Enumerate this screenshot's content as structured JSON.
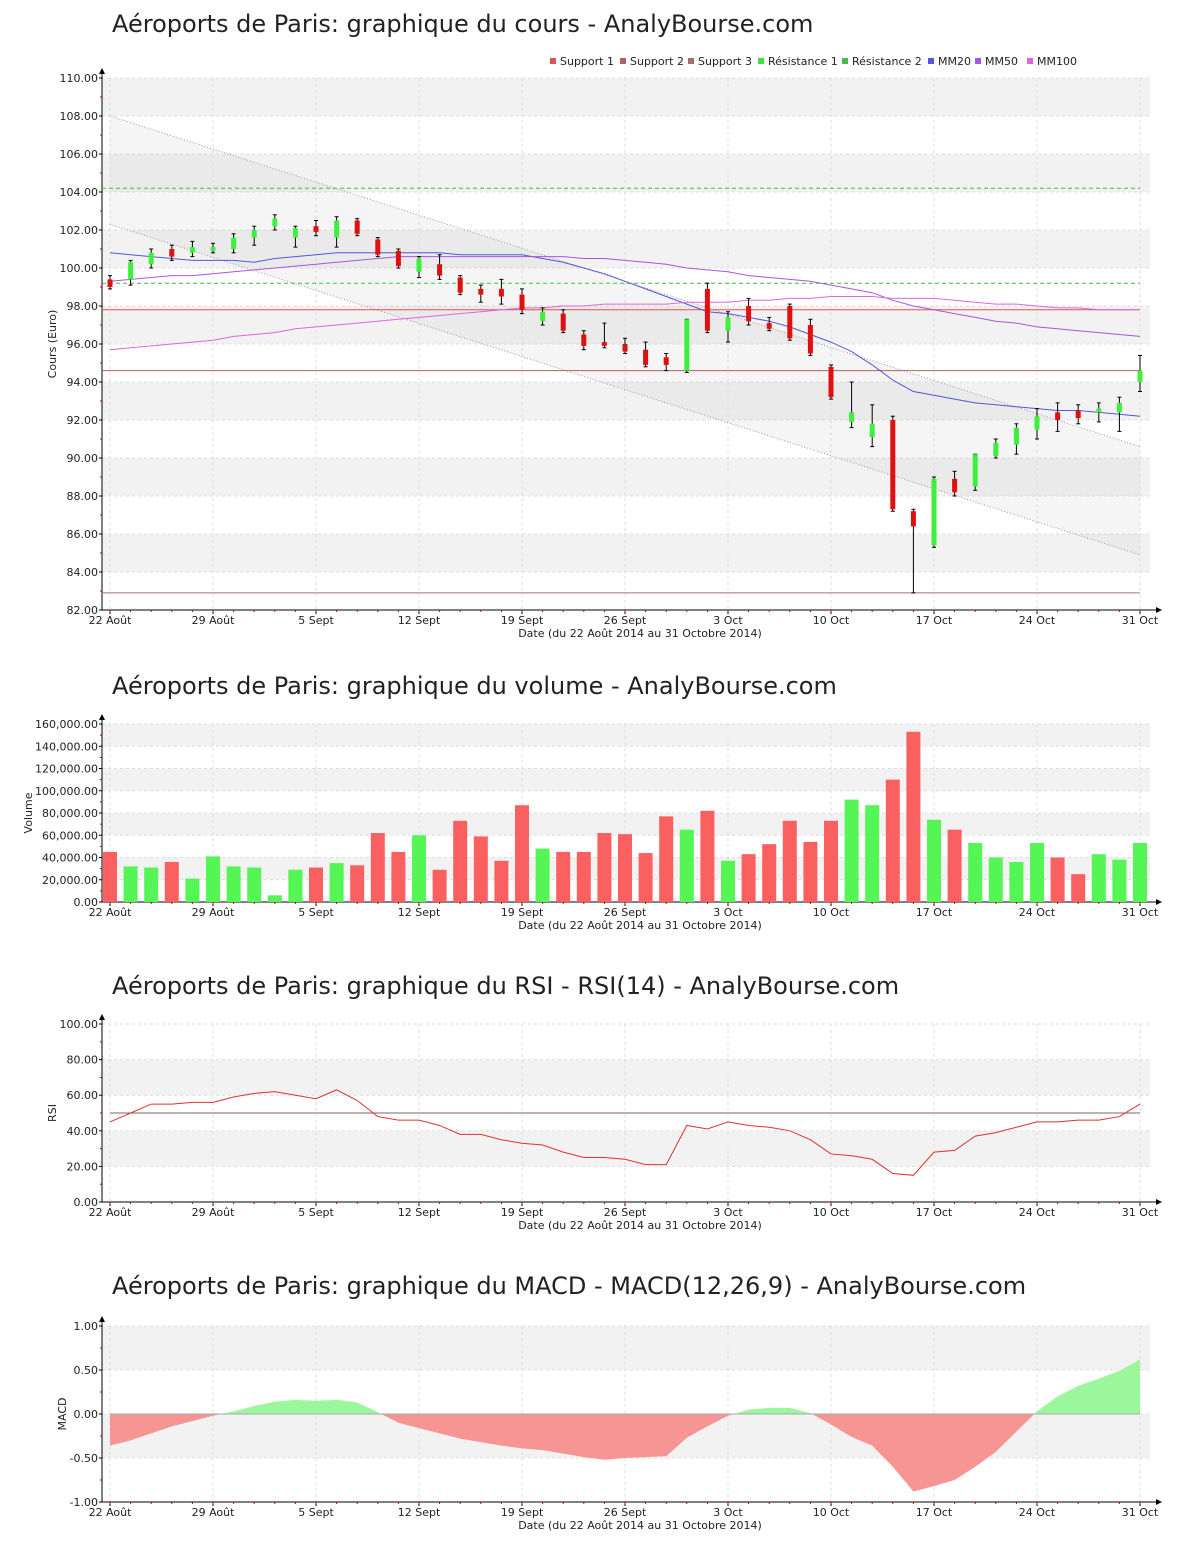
{
  "chart_data": [
    {
      "type": "candlestick",
      "title": "Aéroports de Paris: graphique du cours - AnalyBourse.com",
      "xlabel": "Date (du 22 Août 2014 au 31 Octobre 2014)",
      "ylabel": "Cours (Euro)",
      "ylim": [
        82,
        110
      ],
      "yticks": [
        "82.00",
        "84.00",
        "86.00",
        "88.00",
        "90.00",
        "92.00",
        "94.00",
        "96.00",
        "98.00",
        "100.00",
        "102.00",
        "104.00",
        "106.00",
        "108.00",
        "110.00"
      ],
      "xticks": [
        {
          "label": "22 Août",
          "index": 0
        },
        {
          "label": "29 Août",
          "index": 5
        },
        {
          "label": "5 Sept",
          "index": 10
        },
        {
          "label": "12 Sept",
          "index": 15
        },
        {
          "label": "19 Sept",
          "index": 20
        },
        {
          "label": "26 Sept",
          "index": 25
        },
        {
          "label": "3 Oct",
          "index": 30
        },
        {
          "label": "10 Oct",
          "index": 35
        },
        {
          "label": "17 Oct",
          "index": 40
        },
        {
          "label": "24 Oct",
          "index": 45
        },
        {
          "label": "31 Oct",
          "index": 50
        }
      ],
      "legend": [
        "Support 1",
        "Support 2",
        "Support 3",
        "Résistance 1",
        "Résistance 2",
        "MM20",
        "MM50",
        "MM100"
      ],
      "legend_position": "top-right",
      "levels": {
        "support_1": 97.8,
        "support_2": 94.6,
        "support_3": 82.9,
        "resistance_1": 99.2,
        "resistance_2": 104.2
      },
      "candles": [
        {
          "o": 99.4,
          "h": 99.6,
          "l": 98.9,
          "c": 99.0
        },
        {
          "o": 99.4,
          "h": 100.4,
          "l": 99.1,
          "c": 100.3
        },
        {
          "o": 100.2,
          "h": 101.0,
          "l": 100.0,
          "c": 100.8
        },
        {
          "o": 101.0,
          "h": 101.2,
          "l": 100.4,
          "c": 100.6
        },
        {
          "o": 100.8,
          "h": 101.4,
          "l": 100.6,
          "c": 101.1
        },
        {
          "o": 100.9,
          "h": 101.3,
          "l": 100.8,
          "c": 101.1
        },
        {
          "o": 101.0,
          "h": 101.8,
          "l": 100.8,
          "c": 101.6
        },
        {
          "o": 101.6,
          "h": 102.2,
          "l": 101.2,
          "c": 102.0
        },
        {
          "o": 102.2,
          "h": 102.8,
          "l": 102.0,
          "c": 102.6
        },
        {
          "o": 101.6,
          "h": 102.2,
          "l": 101.1,
          "c": 102.1
        },
        {
          "o": 102.2,
          "h": 102.5,
          "l": 101.7,
          "c": 101.9
        },
        {
          "o": 101.6,
          "h": 102.7,
          "l": 101.1,
          "c": 102.5
        },
        {
          "o": 102.5,
          "h": 102.6,
          "l": 101.7,
          "c": 101.8
        },
        {
          "o": 101.5,
          "h": 101.6,
          "l": 100.6,
          "c": 100.7
        },
        {
          "o": 100.9,
          "h": 101.0,
          "l": 100.0,
          "c": 100.1
        },
        {
          "o": 99.8,
          "h": 100.6,
          "l": 99.5,
          "c": 100.5
        },
        {
          "o": 100.2,
          "h": 100.7,
          "l": 99.4,
          "c": 99.6
        },
        {
          "o": 99.5,
          "h": 99.6,
          "l": 98.6,
          "c": 98.7
        },
        {
          "o": 98.9,
          "h": 99.1,
          "l": 98.2,
          "c": 98.6
        },
        {
          "o": 98.9,
          "h": 99.4,
          "l": 98.1,
          "c": 98.5
        },
        {
          "o": 98.6,
          "h": 98.9,
          "l": 97.6,
          "c": 97.8
        },
        {
          "o": 97.2,
          "h": 97.9,
          "l": 97.0,
          "c": 97.7
        },
        {
          "o": 97.6,
          "h": 97.8,
          "l": 96.6,
          "c": 96.7
        },
        {
          "o": 96.5,
          "h": 96.7,
          "l": 95.7,
          "c": 95.9
        },
        {
          "o": 96.1,
          "h": 97.1,
          "l": 95.8,
          "c": 95.9
        },
        {
          "o": 96.0,
          "h": 96.3,
          "l": 95.5,
          "c": 95.6
        },
        {
          "o": 95.7,
          "h": 96.1,
          "l": 94.8,
          "c": 94.9
        },
        {
          "o": 95.3,
          "h": 95.5,
          "l": 94.6,
          "c": 94.9
        },
        {
          "o": 94.6,
          "h": 97.3,
          "l": 94.5,
          "c": 97.3
        },
        {
          "o": 98.9,
          "h": 99.2,
          "l": 96.6,
          "c": 96.7
        },
        {
          "o": 96.7,
          "h": 97.7,
          "l": 96.1,
          "c": 97.4
        },
        {
          "o": 98.0,
          "h": 98.4,
          "l": 97.0,
          "c": 97.2
        },
        {
          "o": 97.1,
          "h": 97.4,
          "l": 96.7,
          "c": 96.8
        },
        {
          "o": 98.0,
          "h": 98.1,
          "l": 96.2,
          "c": 96.3
        },
        {
          "o": 97.0,
          "h": 97.3,
          "l": 95.4,
          "c": 95.5
        },
        {
          "o": 94.8,
          "h": 94.9,
          "l": 93.1,
          "c": 93.2
        },
        {
          "o": 91.9,
          "h": 94.0,
          "l": 91.6,
          "c": 92.4
        },
        {
          "o": 91.1,
          "h": 92.8,
          "l": 90.6,
          "c": 91.8
        },
        {
          "o": 92.0,
          "h": 92.2,
          "l": 87.2,
          "c": 87.3
        },
        {
          "o": 87.2,
          "h": 87.3,
          "l": 82.9,
          "c": 86.4
        },
        {
          "o": 85.4,
          "h": 89.0,
          "l": 85.3,
          "c": 88.9
        },
        {
          "o": 88.9,
          "h": 89.3,
          "l": 88.0,
          "c": 88.2
        },
        {
          "o": 88.5,
          "h": 90.2,
          "l": 88.3,
          "c": 90.2
        },
        {
          "o": 90.1,
          "h": 91.0,
          "l": 90.0,
          "c": 90.8
        },
        {
          "o": 90.7,
          "h": 91.8,
          "l": 90.2,
          "c": 91.6
        },
        {
          "o": 91.5,
          "h": 92.6,
          "l": 91.0,
          "c": 92.2
        },
        {
          "o": 92.4,
          "h": 92.9,
          "l": 91.4,
          "c": 92.0
        },
        {
          "o": 92.5,
          "h": 92.8,
          "l": 91.8,
          "c": 92.1
        },
        {
          "o": 92.4,
          "h": 92.9,
          "l": 91.9,
          "c": 92.6
        },
        {
          "o": 92.4,
          "h": 93.2,
          "l": 91.4,
          "c": 92.9
        },
        {
          "o": 94.0,
          "h": 95.4,
          "l": 93.5,
          "c": 94.6
        }
      ],
      "moving_averages": {
        "MM20": [
          100.8,
          100.7,
          100.6,
          100.5,
          100.4,
          100.4,
          100.4,
          100.3,
          100.5,
          100.6,
          100.7,
          100.8,
          100.8,
          100.8,
          100.8,
          100.8,
          100.8,
          100.7,
          100.7,
          100.7,
          100.7,
          100.5,
          100.3,
          100.0,
          99.7,
          99.3,
          98.9,
          98.5,
          98.1,
          97.7,
          97.6,
          97.4,
          97.2,
          96.9,
          96.5,
          96.1,
          95.6,
          94.9,
          94.1,
          93.5,
          93.3,
          93.1,
          92.9,
          92.8,
          92.7,
          92.6,
          92.5,
          92.5,
          92.4,
          92.3,
          92.2
        ],
        "MM50": [
          99.3,
          99.4,
          99.5,
          99.6,
          99.6,
          99.7,
          99.8,
          99.9,
          100.0,
          100.1,
          100.2,
          100.3,
          100.4,
          100.5,
          100.6,
          100.6,
          100.6,
          100.6,
          100.6,
          100.6,
          100.6,
          100.6,
          100.6,
          100.5,
          100.5,
          100.4,
          100.3,
          100.2,
          100.0,
          99.9,
          99.8,
          99.6,
          99.5,
          99.4,
          99.3,
          99.1,
          98.9,
          98.7,
          98.3,
          98.0,
          97.8,
          97.6,
          97.4,
          97.2,
          97.1,
          96.9,
          96.8,
          96.7,
          96.6,
          96.5,
          96.4
        ],
        "MM100": [
          95.7,
          95.8,
          95.9,
          96.0,
          96.1,
          96.2,
          96.4,
          96.5,
          96.6,
          96.8,
          96.9,
          97.0,
          97.1,
          97.2,
          97.3,
          97.4,
          97.5,
          97.6,
          97.7,
          97.8,
          97.9,
          97.9,
          98.0,
          98.0,
          98.1,
          98.1,
          98.1,
          98.1,
          98.2,
          98.2,
          98.2,
          98.3,
          98.3,
          98.4,
          98.4,
          98.5,
          98.5,
          98.5,
          98.4,
          98.4,
          98.4,
          98.3,
          98.2,
          98.1,
          98.1,
          98.0,
          97.9,
          97.9,
          97.8,
          97.8,
          97.8
        ]
      },
      "trend_channel": {
        "upper": [
          {
            "index": 0,
            "value": 108.0
          },
          {
            "index": 50,
            "value": 90.6
          }
        ],
        "lower": [
          {
            "index": 0,
            "value": 102.3
          },
          {
            "index": 50,
            "value": 84.9
          }
        ]
      },
      "grid": true
    },
    {
      "type": "bar",
      "title": "Aéroports de Paris: graphique du volume - AnalyBourse.com",
      "xlabel": "Date (du 22 Août 2014 au 31 Octobre 2014)",
      "ylabel": "Volume",
      "ylim": [
        0,
        160000
      ],
      "yticks": [
        "0.00",
        "20,000.00",
        "40,000.00",
        "60,000.00",
        "80,000.00",
        "100,000.00",
        "120,000.00",
        "140,000.00",
        "160,000.00"
      ],
      "values": [
        45000,
        32000,
        31000,
        36000,
        21000,
        41000,
        32000,
        31000,
        6000,
        29000,
        31000,
        35000,
        33000,
        62000,
        45000,
        60000,
        29000,
        73000,
        59000,
        37000,
        87000,
        48000,
        45000,
        45000,
        62000,
        61000,
        44000,
        77000,
        65000,
        82000,
        37000,
        43000,
        52000,
        73000,
        54000,
        73000,
        92000,
        87000,
        110000,
        153000,
        74000,
        65000,
        53000,
        40000,
        36000,
        53000,
        40000,
        25000,
        43000,
        38000,
        53000
      ],
      "colors": [
        "red",
        "green",
        "green",
        "red",
        "green",
        "green",
        "green",
        "green",
        "green",
        "green",
        "red",
        "green",
        "red",
        "red",
        "red",
        "green",
        "red",
        "red",
        "red",
        "red",
        "red",
        "green",
        "red",
        "red",
        "red",
        "red",
        "red",
        "red",
        "green",
        "red",
        "green",
        "red",
        "red",
        "red",
        "red",
        "red",
        "green",
        "green",
        "red",
        "red",
        "green",
        "red",
        "green",
        "green",
        "green",
        "green",
        "red",
        "red",
        "green",
        "green",
        "green"
      ],
      "grid": true
    },
    {
      "type": "line",
      "title": "Aéroports de Paris: graphique du RSI - RSI(14) - AnalyBourse.com",
      "xlabel": "Date (du 22 Août 2014 au 31 Octobre 2014)",
      "ylabel": "RSI",
      "ylim": [
        0,
        100
      ],
      "yticks": [
        "0.00",
        "20.00",
        "40.00",
        "60.00",
        "80.00",
        "100.00"
      ],
      "reference_line": 50,
      "values": [
        45,
        50,
        55,
        55,
        56,
        56,
        59,
        61,
        62,
        60,
        58,
        63,
        57,
        48,
        46,
        46,
        43,
        38,
        38,
        35,
        33,
        32,
        28,
        25,
        25,
        24,
        21,
        21,
        43,
        41,
        45,
        43,
        42,
        40,
        35,
        27,
        26,
        24,
        16,
        15,
        28,
        29,
        37,
        39,
        42,
        45,
        45,
        46,
        46,
        48,
        55
      ],
      "grid": true
    },
    {
      "type": "area",
      "title": "Aéroports de Paris: graphique du MACD - MACD(12,26,9) - AnalyBourse.com",
      "xlabel": "Date (du 22 Août 2014 au 31 Octobre 2014)",
      "ylabel": "MACD",
      "ylim": [
        -1,
        1
      ],
      "yticks": [
        "-1.00",
        "-0.50",
        "0.00",
        "0.50",
        "1.00"
      ],
      "values": [
        -0.36,
        -0.3,
        -0.22,
        -0.14,
        -0.08,
        -0.02,
        0.03,
        0.09,
        0.14,
        0.16,
        0.15,
        0.16,
        0.13,
        0.02,
        -0.1,
        -0.16,
        -0.22,
        -0.28,
        -0.32,
        -0.36,
        -0.39,
        -0.41,
        -0.45,
        -0.49,
        -0.52,
        -0.5,
        -0.49,
        -0.48,
        -0.27,
        -0.14,
        -0.02,
        0.05,
        0.07,
        0.07,
        0.01,
        -0.12,
        -0.26,
        -0.36,
        -0.6,
        -0.88,
        -0.82,
        -0.75,
        -0.6,
        -0.43,
        -0.2,
        0.03,
        0.2,
        0.32,
        0.4,
        0.49,
        0.62
      ],
      "grid": true
    }
  ]
}
